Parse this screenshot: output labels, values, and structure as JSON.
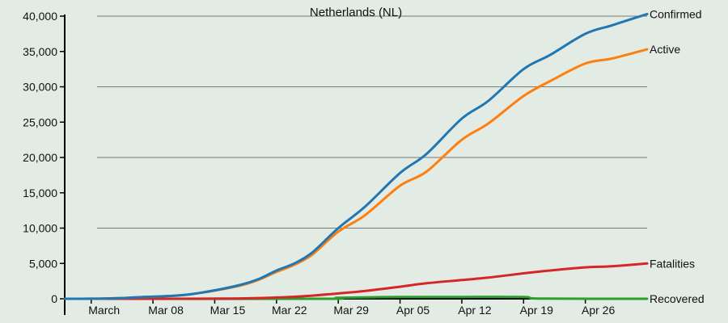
{
  "chart_data": {
    "type": "line",
    "title": "Netherlands (NL)",
    "xlabel": "",
    "ylabel": "",
    "ylim": [
      0,
      40000
    ],
    "grid": true,
    "x_start": "2020-02-27",
    "x_end": "2020-05-03",
    "x_ticks": [
      "March",
      "Mar 08",
      "Mar 15",
      "Mar 22",
      "Mar 29",
      "Apr 05",
      "Apr 12",
      "Apr 19",
      "Apr 26"
    ],
    "x_tick_dates": [
      "2020-03-01",
      "2020-03-08",
      "2020-03-15",
      "2020-03-22",
      "2020-03-29",
      "2020-04-05",
      "2020-04-12",
      "2020-04-19",
      "2020-04-26"
    ],
    "y_ticks": [
      "0",
      "5,000",
      "10,000",
      "15,000",
      "20,000",
      "25,000",
      "30,000",
      "35,000",
      "40,000"
    ],
    "y_tick_values": [
      0,
      5000,
      10000,
      15000,
      20000,
      25000,
      30000,
      35000,
      40000
    ],
    "series": [
      {
        "name": "Confirmed",
        "color": "#1f77b4",
        "points": [
          [
            "2020-02-27",
            0
          ],
          [
            "2020-03-01",
            10
          ],
          [
            "2020-03-04",
            80
          ],
          [
            "2020-03-06",
            200
          ],
          [
            "2020-03-08",
            300
          ],
          [
            "2020-03-10",
            400
          ],
          [
            "2020-03-12",
            600
          ],
          [
            "2020-03-15",
            1200
          ],
          [
            "2020-03-18",
            2000
          ],
          [
            "2020-03-20",
            2800
          ],
          [
            "2020-03-22",
            4000
          ],
          [
            "2020-03-24",
            5000
          ],
          [
            "2020-03-26",
            6500
          ],
          [
            "2020-03-29",
            10000
          ],
          [
            "2020-04-01",
            13000
          ],
          [
            "2020-04-05",
            17800
          ],
          [
            "2020-04-08",
            20500
          ],
          [
            "2020-04-12",
            25500
          ],
          [
            "2020-04-15",
            28000
          ],
          [
            "2020-04-19",
            32500
          ],
          [
            "2020-04-22",
            34500
          ],
          [
            "2020-04-26",
            37500
          ],
          [
            "2020-04-29",
            38700
          ],
          [
            "2020-05-03",
            40300
          ]
        ]
      },
      {
        "name": "Active",
        "color": "#ff7f0e",
        "points": [
          [
            "2020-02-27",
            0
          ],
          [
            "2020-03-01",
            10
          ],
          [
            "2020-03-04",
            80
          ],
          [
            "2020-03-06",
            200
          ],
          [
            "2020-03-08",
            300
          ],
          [
            "2020-03-10",
            400
          ],
          [
            "2020-03-12",
            600
          ],
          [
            "2020-03-15",
            1150
          ],
          [
            "2020-03-18",
            1900
          ],
          [
            "2020-03-20",
            2700
          ],
          [
            "2020-03-22",
            3800
          ],
          [
            "2020-03-24",
            4800
          ],
          [
            "2020-03-26",
            6200
          ],
          [
            "2020-03-29",
            9500
          ],
          [
            "2020-04-01",
            11800
          ],
          [
            "2020-04-05",
            16000
          ],
          [
            "2020-04-08",
            18000
          ],
          [
            "2020-04-12",
            22500
          ],
          [
            "2020-04-15",
            24800
          ],
          [
            "2020-04-19",
            28700
          ],
          [
            "2020-04-22",
            30800
          ],
          [
            "2020-04-26",
            33300
          ],
          [
            "2020-04-29",
            34000
          ],
          [
            "2020-05-03",
            35300
          ]
        ]
      },
      {
        "name": "Fatalities",
        "color": "#d62728",
        "points": [
          [
            "2020-02-27",
            0
          ],
          [
            "2020-03-08",
            0
          ],
          [
            "2020-03-15",
            20
          ],
          [
            "2020-03-20",
            100
          ],
          [
            "2020-03-22",
            180
          ],
          [
            "2020-03-25",
            350
          ],
          [
            "2020-03-29",
            750
          ],
          [
            "2020-04-01",
            1100
          ],
          [
            "2020-04-05",
            1700
          ],
          [
            "2020-04-08",
            2200
          ],
          [
            "2020-04-12",
            2650
          ],
          [
            "2020-04-15",
            3000
          ],
          [
            "2020-04-19",
            3600
          ],
          [
            "2020-04-22",
            4000
          ],
          [
            "2020-04-26",
            4450
          ],
          [
            "2020-04-29",
            4600
          ],
          [
            "2020-05-03",
            5000
          ]
        ]
      },
      {
        "name": "Recovered",
        "color": "#2ca02c",
        "points": [
          [
            "2020-02-27",
            0
          ],
          [
            "2020-03-27",
            0
          ],
          [
            "2020-03-29",
            150
          ],
          [
            "2020-04-05",
            250
          ],
          [
            "2020-04-12",
            260
          ],
          [
            "2020-04-19",
            250
          ],
          [
            "2020-04-21",
            20
          ],
          [
            "2020-05-03",
            0
          ]
        ]
      }
    ]
  }
}
